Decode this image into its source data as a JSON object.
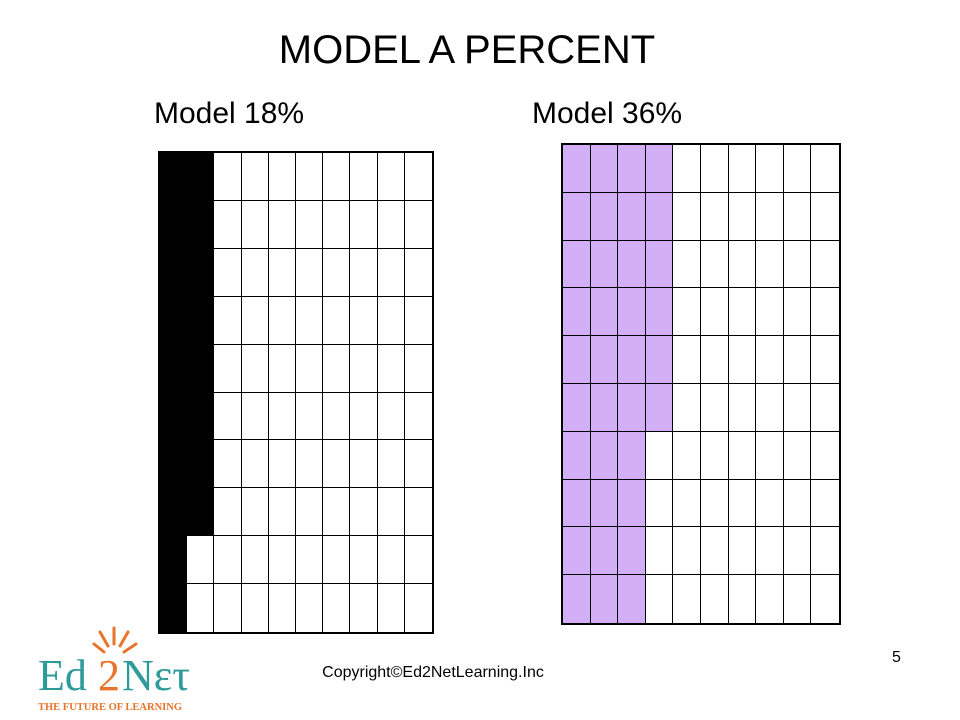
{
  "title": "MODEL A PERCENT",
  "models": [
    {
      "label": "Model 18%",
      "percent": 18,
      "fill_color": "#000000",
      "fill_order": "column"
    },
    {
      "label": "Model 36%",
      "percent": 36,
      "fill_color": "#d3aef7",
      "fill_order": "column"
    }
  ],
  "grid": {
    "rows": 10,
    "cols": 10,
    "empty_color": "#ffffff"
  },
  "footer": {
    "copyright": "Copyright©Ed2NetLearning.Inc",
    "slide_number": "5",
    "logo_text_ed": "Ed",
    "logo_text_2": "2",
    "logo_text_net": "Nετ",
    "logo_tagline": "THE FUTURE OF LEARNING",
    "logo_colors": {
      "text": "#2f9a9a",
      "accent": "#e8732a"
    }
  }
}
